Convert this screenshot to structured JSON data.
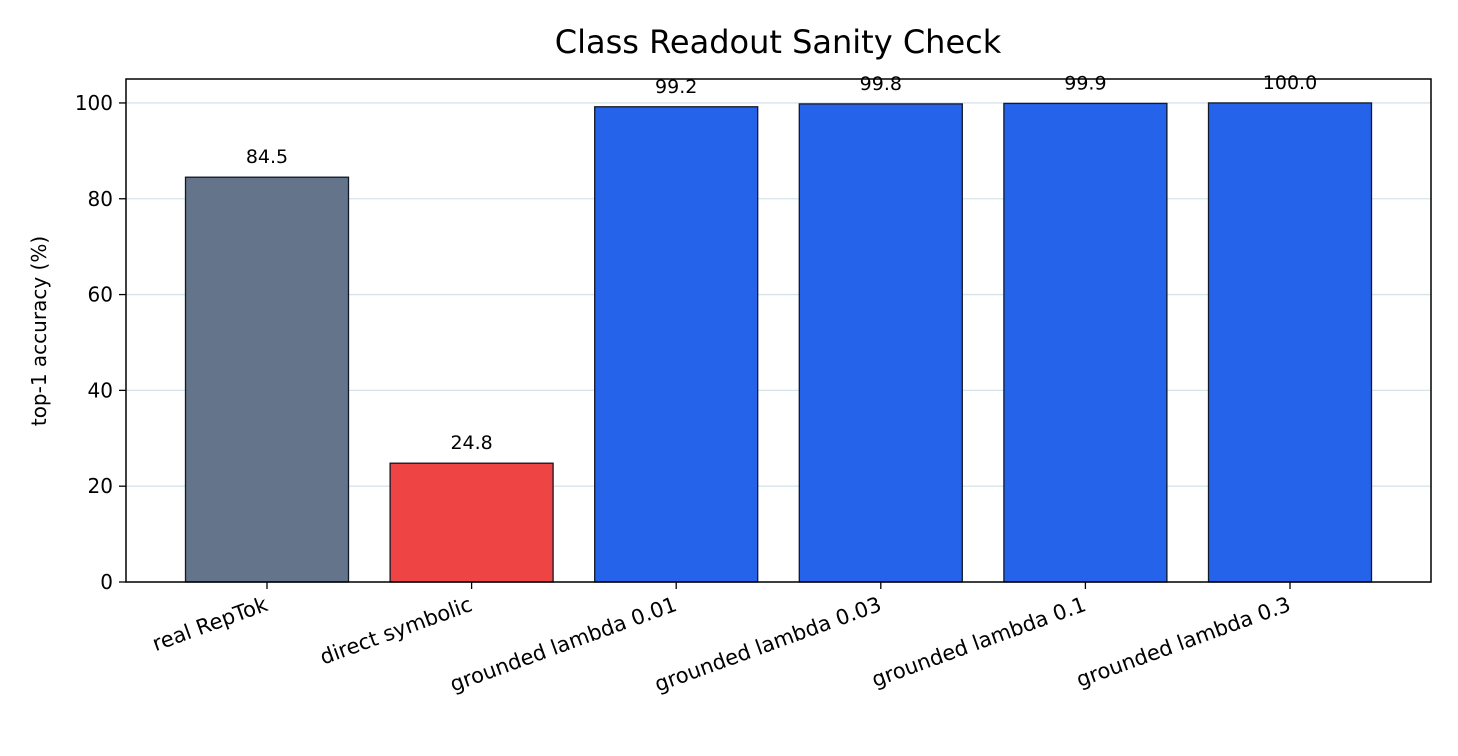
{
  "chart_data": {
    "type": "bar",
    "title": "Class Readout Sanity Check",
    "xlabel": "",
    "ylabel": "top-1 accuracy (%)",
    "ylim": [
      0,
      105
    ],
    "yticks": [
      0,
      20,
      40,
      60,
      80,
      100
    ],
    "grid": "horizontal",
    "categories": [
      "real RepTok",
      "direct symbolic",
      "grounded lambda 0.01",
      "grounded lambda 0.03",
      "grounded lambda 0.1",
      "grounded lambda 0.3"
    ],
    "values": [
      84.5,
      24.8,
      99.2,
      99.8,
      99.9,
      100.0
    ],
    "data_labels": [
      "84.5",
      "24.8",
      "99.2",
      "99.8",
      "99.9",
      "100.0"
    ],
    "colors": [
      "#64748b",
      "#ef4444",
      "#2563eb",
      "#2563eb",
      "#2563eb",
      "#2563eb"
    ],
    "grid_color": "#d6e4ea"
  }
}
